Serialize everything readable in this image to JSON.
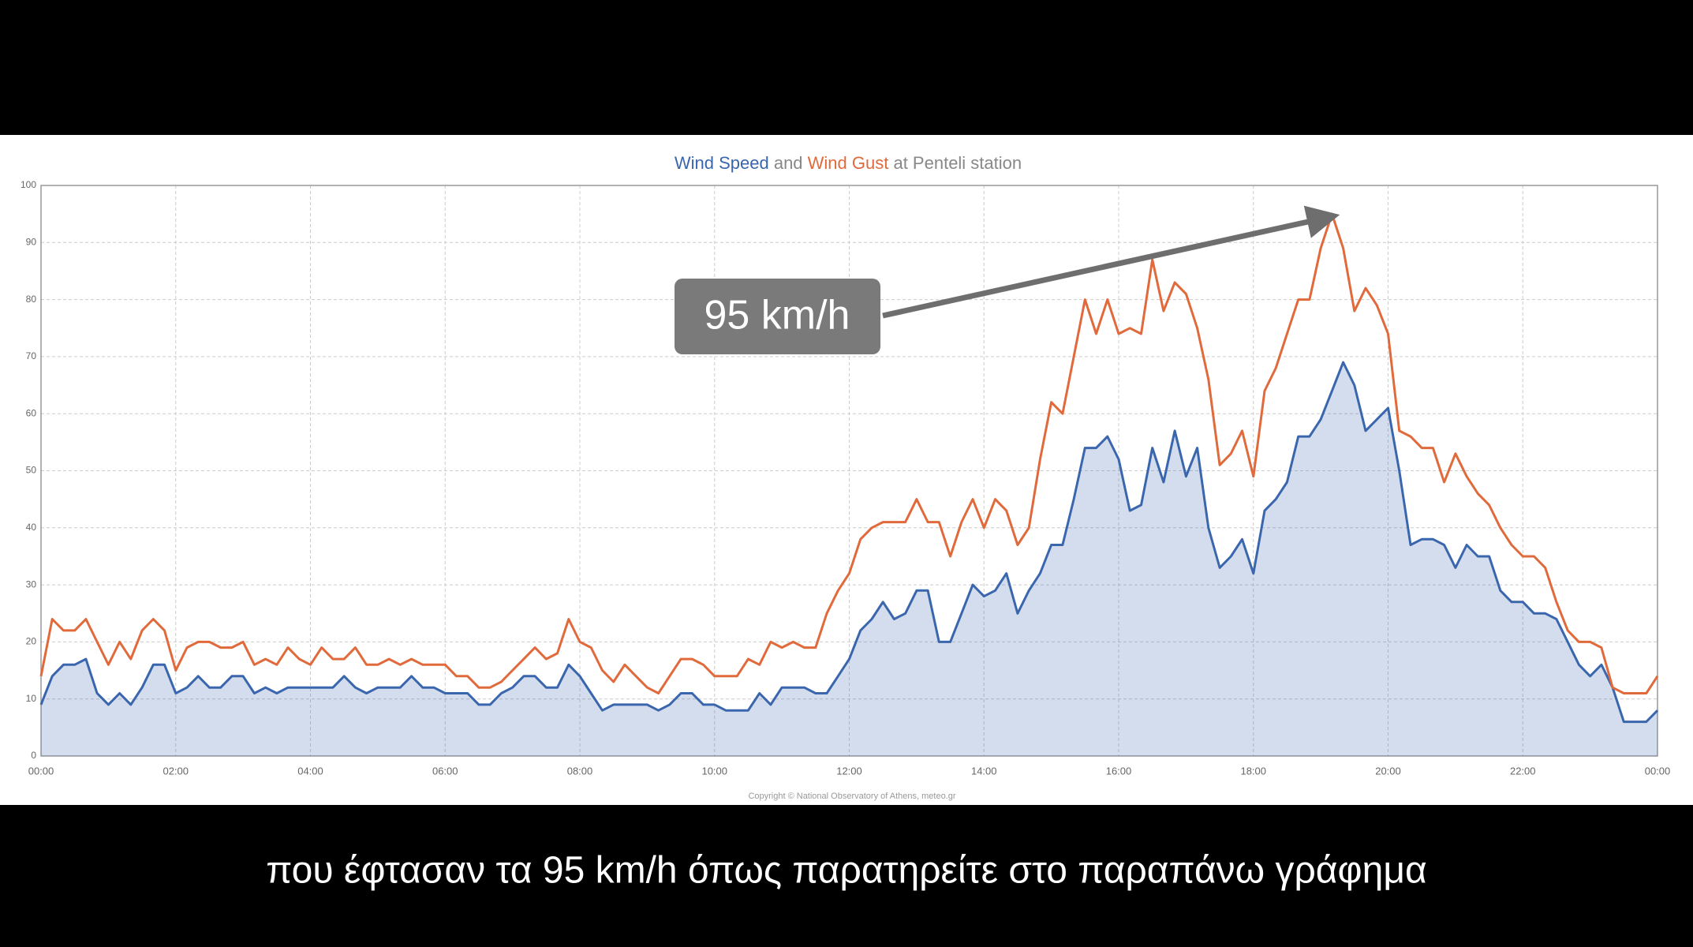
{
  "chart_data": {
    "type": "line",
    "title": [
      {
        "text": "Wind Speed",
        "color": "#3a66ad"
      },
      {
        "text": " and ",
        "color": "#888888"
      },
      {
        "text": "Wind Gust",
        "color": "#e06a3b"
      },
      {
        "text": " at Penteli station",
        "color": "#888888"
      }
    ],
    "x": [
      0,
      10,
      20,
      30,
      40,
      50,
      60,
      70,
      80,
      90,
      100,
      110,
      120,
      130,
      140,
      150,
      160,
      170,
      180,
      190,
      200,
      210,
      220,
      230,
      240,
      250,
      260,
      270,
      280,
      290,
      300,
      310,
      320,
      330,
      340,
      350,
      360,
      370,
      380,
      390,
      400,
      410,
      420,
      430,
      440,
      450,
      460,
      470,
      480,
      490,
      500,
      510,
      520,
      530,
      540,
      550,
      560,
      570,
      580,
      590,
      600,
      610,
      620,
      630,
      640,
      650,
      660,
      670,
      680,
      690,
      700,
      710,
      720,
      730,
      740,
      750,
      760,
      770,
      780,
      790,
      800,
      810,
      820,
      830,
      840,
      850,
      860,
      870,
      880,
      890,
      900,
      910,
      920,
      930,
      940,
      950,
      960,
      970,
      980,
      990,
      1000,
      1010,
      1020,
      1030,
      1040,
      1050,
      1060,
      1070,
      1080,
      1090,
      1100,
      1110,
      1120,
      1130,
      1140,
      1150,
      1160,
      1170,
      1180,
      1190,
      1200,
      1210,
      1220,
      1230,
      1240,
      1250,
      1260,
      1270,
      1280,
      1290,
      1300,
      1310,
      1320,
      1330,
      1340,
      1350,
      1360,
      1370,
      1380,
      1390,
      1400,
      1410,
      1420,
      1430,
      1440
    ],
    "series": [
      {
        "name": "Wind Speed",
        "color": "#3a66ad",
        "area": true,
        "values": [
          9,
          14,
          16,
          16,
          17,
          11,
          9,
          11,
          9,
          12,
          16,
          16,
          11,
          12,
          14,
          12,
          12,
          14,
          14,
          11,
          12,
          11,
          12,
          12,
          12,
          12,
          12,
          14,
          12,
          11,
          12,
          12,
          12,
          14,
          12,
          12,
          11,
          11,
          11,
          9,
          9,
          11,
          12,
          14,
          14,
          12,
          12,
          16,
          14,
          11,
          8,
          9,
          9,
          9,
          9,
          8,
          9,
          11,
          11,
          9,
          9,
          8,
          8,
          8,
          11,
          9,
          12,
          12,
          12,
          11,
          11,
          14,
          17,
          22,
          24,
          27,
          24,
          25,
          29,
          29,
          20,
          20,
          25,
          30,
          28,
          29,
          32,
          25,
          29,
          32,
          37,
          37,
          45,
          54,
          54,
          56,
          52,
          43,
          44,
          54,
          48,
          57,
          49,
          54,
          40,
          33,
          35,
          38,
          32,
          43,
          45,
          48,
          56,
          56,
          59,
          64,
          69,
          65,
          57,
          59,
          61,
          50,
          37,
          38,
          38,
          37,
          33,
          37,
          35,
          35,
          29,
          27,
          27,
          25,
          25,
          24,
          20,
          16,
          14,
          16,
          12,
          6,
          6,
          6,
          8
        ]
      },
      {
        "name": "Wind Gust",
        "color": "#e06a3b",
        "area": false,
        "values": [
          14,
          24,
          22,
          22,
          24,
          20,
          16,
          20,
          17,
          22,
          24,
          22,
          15,
          19,
          20,
          20,
          19,
          19,
          20,
          16,
          17,
          16,
          19,
          17,
          16,
          19,
          17,
          17,
          19,
          16,
          16,
          17,
          16,
          17,
          16,
          16,
          16,
          14,
          14,
          12,
          12,
          13,
          15,
          17,
          19,
          17,
          18,
          24,
          20,
          19,
          15,
          13,
          16,
          14,
          12,
          11,
          14,
          17,
          17,
          16,
          14,
          14,
          14,
          17,
          16,
          20,
          19,
          20,
          19,
          19,
          25,
          29,
          32,
          38,
          40,
          41,
          41,
          41,
          45,
          41,
          41,
          35,
          41,
          45,
          40,
          45,
          43,
          37,
          40,
          52,
          62,
          60,
          70,
          80,
          74,
          80,
          74,
          75,
          74,
          87,
          78,
          83,
          81,
          75,
          66,
          51,
          53,
          57,
          49,
          64,
          68,
          74,
          80,
          80,
          89,
          95,
          89,
          78,
          82,
          79,
          74,
          57,
          56,
          54,
          54,
          48,
          53,
          49,
          46,
          44,
          40,
          37,
          35,
          35,
          33,
          27,
          22,
          20,
          20,
          19,
          12,
          11,
          11,
          11,
          14
        ]
      }
    ],
    "xlim": [
      0,
      1440
    ],
    "xticks": [
      {
        "value": 0,
        "label": "00:00"
      },
      {
        "value": 120,
        "label": "02:00"
      },
      {
        "value": 240,
        "label": "04:00"
      },
      {
        "value": 360,
        "label": "06:00"
      },
      {
        "value": 480,
        "label": "08:00"
      },
      {
        "value": 600,
        "label": "10:00"
      },
      {
        "value": 720,
        "label": "12:00"
      },
      {
        "value": 840,
        "label": "14:00"
      },
      {
        "value": 960,
        "label": "16:00"
      },
      {
        "value": 1080,
        "label": "18:00"
      },
      {
        "value": 1200,
        "label": "20:00"
      },
      {
        "value": 1320,
        "label": "22:00"
      },
      {
        "value": 1440,
        "label": "00:00"
      }
    ],
    "ylim": [
      0,
      100
    ],
    "yticks": [
      0,
      10,
      20,
      30,
      40,
      50,
      60,
      70,
      80,
      90,
      100
    ],
    "grid": true,
    "annotations": [
      {
        "text": "95 km/h",
        "x": 1160,
        "y": 95
      }
    ],
    "credit": "Copyright © National Observatory of Athens, meteo.gr"
  },
  "caption": "που έφτασαν τα 95 km/h όπως παρατηρείτε στο παραπάνω γράφημα"
}
